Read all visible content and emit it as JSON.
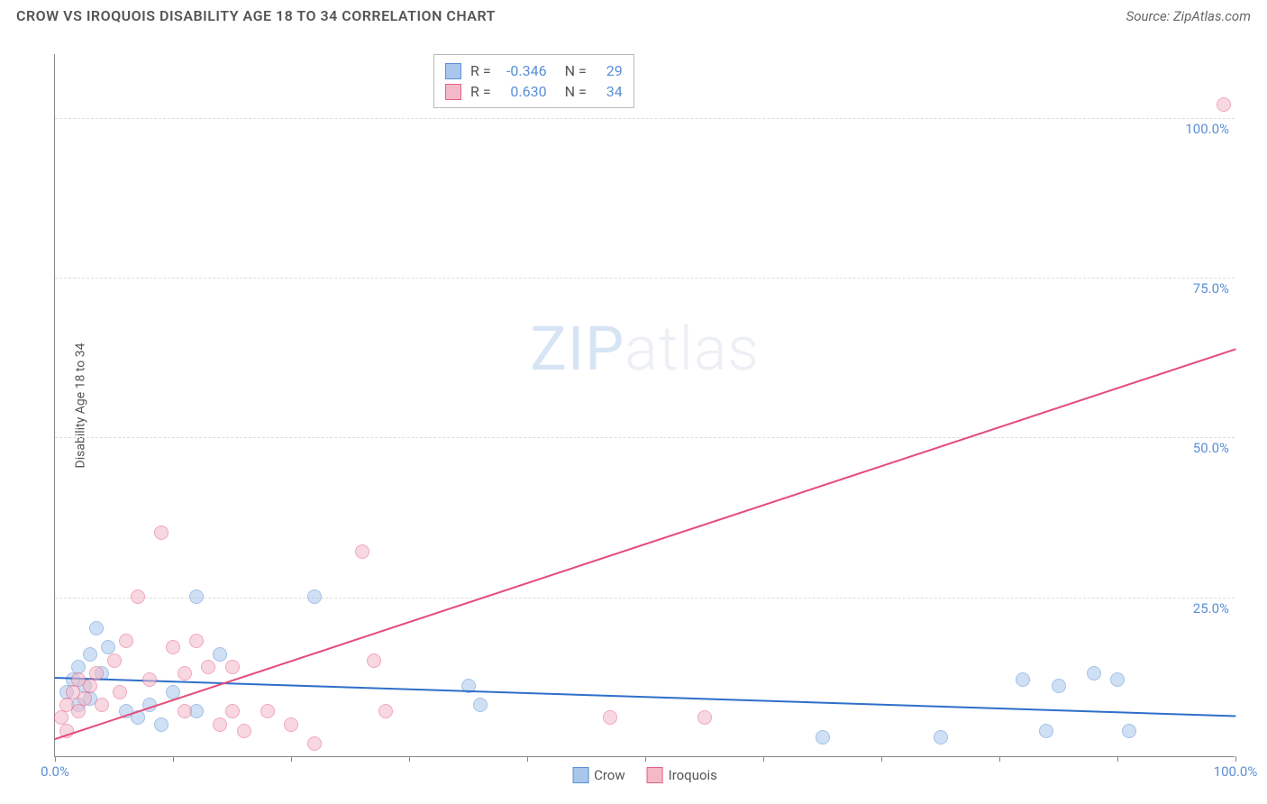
{
  "title": "CROW VS IROQUOIS DISABILITY AGE 18 TO 34 CORRELATION CHART",
  "source": "Source: ZipAtlas.com",
  "ylabel": "Disability Age 18 to 34",
  "watermark_bold": "ZIP",
  "watermark_light": "atlas",
  "chart": {
    "type": "scatter",
    "xlim": [
      0,
      100
    ],
    "ylim": [
      0,
      110
    ],
    "ytick_values": [
      25,
      50,
      75,
      100
    ],
    "ytick_labels": [
      "25.0%",
      "50.0%",
      "75.0%",
      "100.0%"
    ],
    "xtick_values": [
      0,
      10,
      20,
      30,
      40,
      50,
      60,
      70,
      80,
      90,
      100
    ],
    "xlabel_min": "0.0%",
    "xlabel_max": "100.0%",
    "grid_color": "#dddddd",
    "axis_tick_label_color": "#5b8fd6",
    "background_color": "#ffffff",
    "point_radius": 8,
    "point_opacity": 0.55,
    "line_width": 2
  },
  "series": [
    {
      "name": "Crow",
      "color_fill": "#a9c7ec",
      "color_stroke": "#5b8fd6",
      "line_color": "#2e6fc9",
      "R": "-0.346",
      "N": "29",
      "regression": {
        "x1": 0,
        "y1": 12.5,
        "x2": 100,
        "y2": 6.5
      },
      "points": [
        {
          "x": 1,
          "y": 10
        },
        {
          "x": 1.5,
          "y": 12
        },
        {
          "x": 2,
          "y": 8
        },
        {
          "x": 2,
          "y": 14
        },
        {
          "x": 2.5,
          "y": 11
        },
        {
          "x": 3,
          "y": 16
        },
        {
          "x": 3,
          "y": 9
        },
        {
          "x": 3.5,
          "y": 20
        },
        {
          "x": 4,
          "y": 13
        },
        {
          "x": 4.5,
          "y": 17
        },
        {
          "x": 6,
          "y": 7
        },
        {
          "x": 7,
          "y": 6
        },
        {
          "x": 8,
          "y": 8
        },
        {
          "x": 9,
          "y": 5
        },
        {
          "x": 10,
          "y": 10
        },
        {
          "x": 12,
          "y": 25
        },
        {
          "x": 12,
          "y": 7
        },
        {
          "x": 14,
          "y": 16
        },
        {
          "x": 22,
          "y": 25
        },
        {
          "x": 35,
          "y": 11
        },
        {
          "x": 36,
          "y": 8
        },
        {
          "x": 65,
          "y": 3
        },
        {
          "x": 75,
          "y": 3
        },
        {
          "x": 82,
          "y": 12
        },
        {
          "x": 84,
          "y": 4
        },
        {
          "x": 85,
          "y": 11
        },
        {
          "x": 88,
          "y": 13
        },
        {
          "x": 90,
          "y": 12
        },
        {
          "x": 91,
          "y": 4
        }
      ]
    },
    {
      "name": "Iroquois",
      "color_fill": "#f4b9c8",
      "color_stroke": "#e85f88",
      "line_color": "#e64b7a",
      "R": "0.630",
      "N": "34",
      "regression": {
        "x1": 0,
        "y1": 3,
        "x2": 100,
        "y2": 64
      },
      "points": [
        {
          "x": 0.5,
          "y": 6
        },
        {
          "x": 1,
          "y": 8
        },
        {
          "x": 1,
          "y": 4
        },
        {
          "x": 1.5,
          "y": 10
        },
        {
          "x": 2,
          "y": 12
        },
        {
          "x": 2,
          "y": 7
        },
        {
          "x": 2.5,
          "y": 9
        },
        {
          "x": 3,
          "y": 11
        },
        {
          "x": 3.5,
          "y": 13
        },
        {
          "x": 4,
          "y": 8
        },
        {
          "x": 5,
          "y": 15
        },
        {
          "x": 5.5,
          "y": 10
        },
        {
          "x": 6,
          "y": 18
        },
        {
          "x": 7,
          "y": 25
        },
        {
          "x": 8,
          "y": 12
        },
        {
          "x": 9,
          "y": 35
        },
        {
          "x": 10,
          "y": 17
        },
        {
          "x": 11,
          "y": 13
        },
        {
          "x": 11,
          "y": 7
        },
        {
          "x": 12,
          "y": 18
        },
        {
          "x": 13,
          "y": 14
        },
        {
          "x": 14,
          "y": 5
        },
        {
          "x": 15,
          "y": 7
        },
        {
          "x": 15,
          "y": 14
        },
        {
          "x": 16,
          "y": 4
        },
        {
          "x": 18,
          "y": 7
        },
        {
          "x": 20,
          "y": 5
        },
        {
          "x": 22,
          "y": 2
        },
        {
          "x": 26,
          "y": 32
        },
        {
          "x": 27,
          "y": 15
        },
        {
          "x": 28,
          "y": 7
        },
        {
          "x": 47,
          "y": 6
        },
        {
          "x": 55,
          "y": 6
        },
        {
          "x": 99,
          "y": 102
        }
      ]
    }
  ],
  "legend": {
    "R_label": "R =",
    "N_label": "N ="
  },
  "bottom_legend": [
    {
      "label": "Crow",
      "fill": "#a9c7ec",
      "stroke": "#5b8fd6"
    },
    {
      "label": "Iroquois",
      "fill": "#f4b9c8",
      "stroke": "#e85f88"
    }
  ]
}
